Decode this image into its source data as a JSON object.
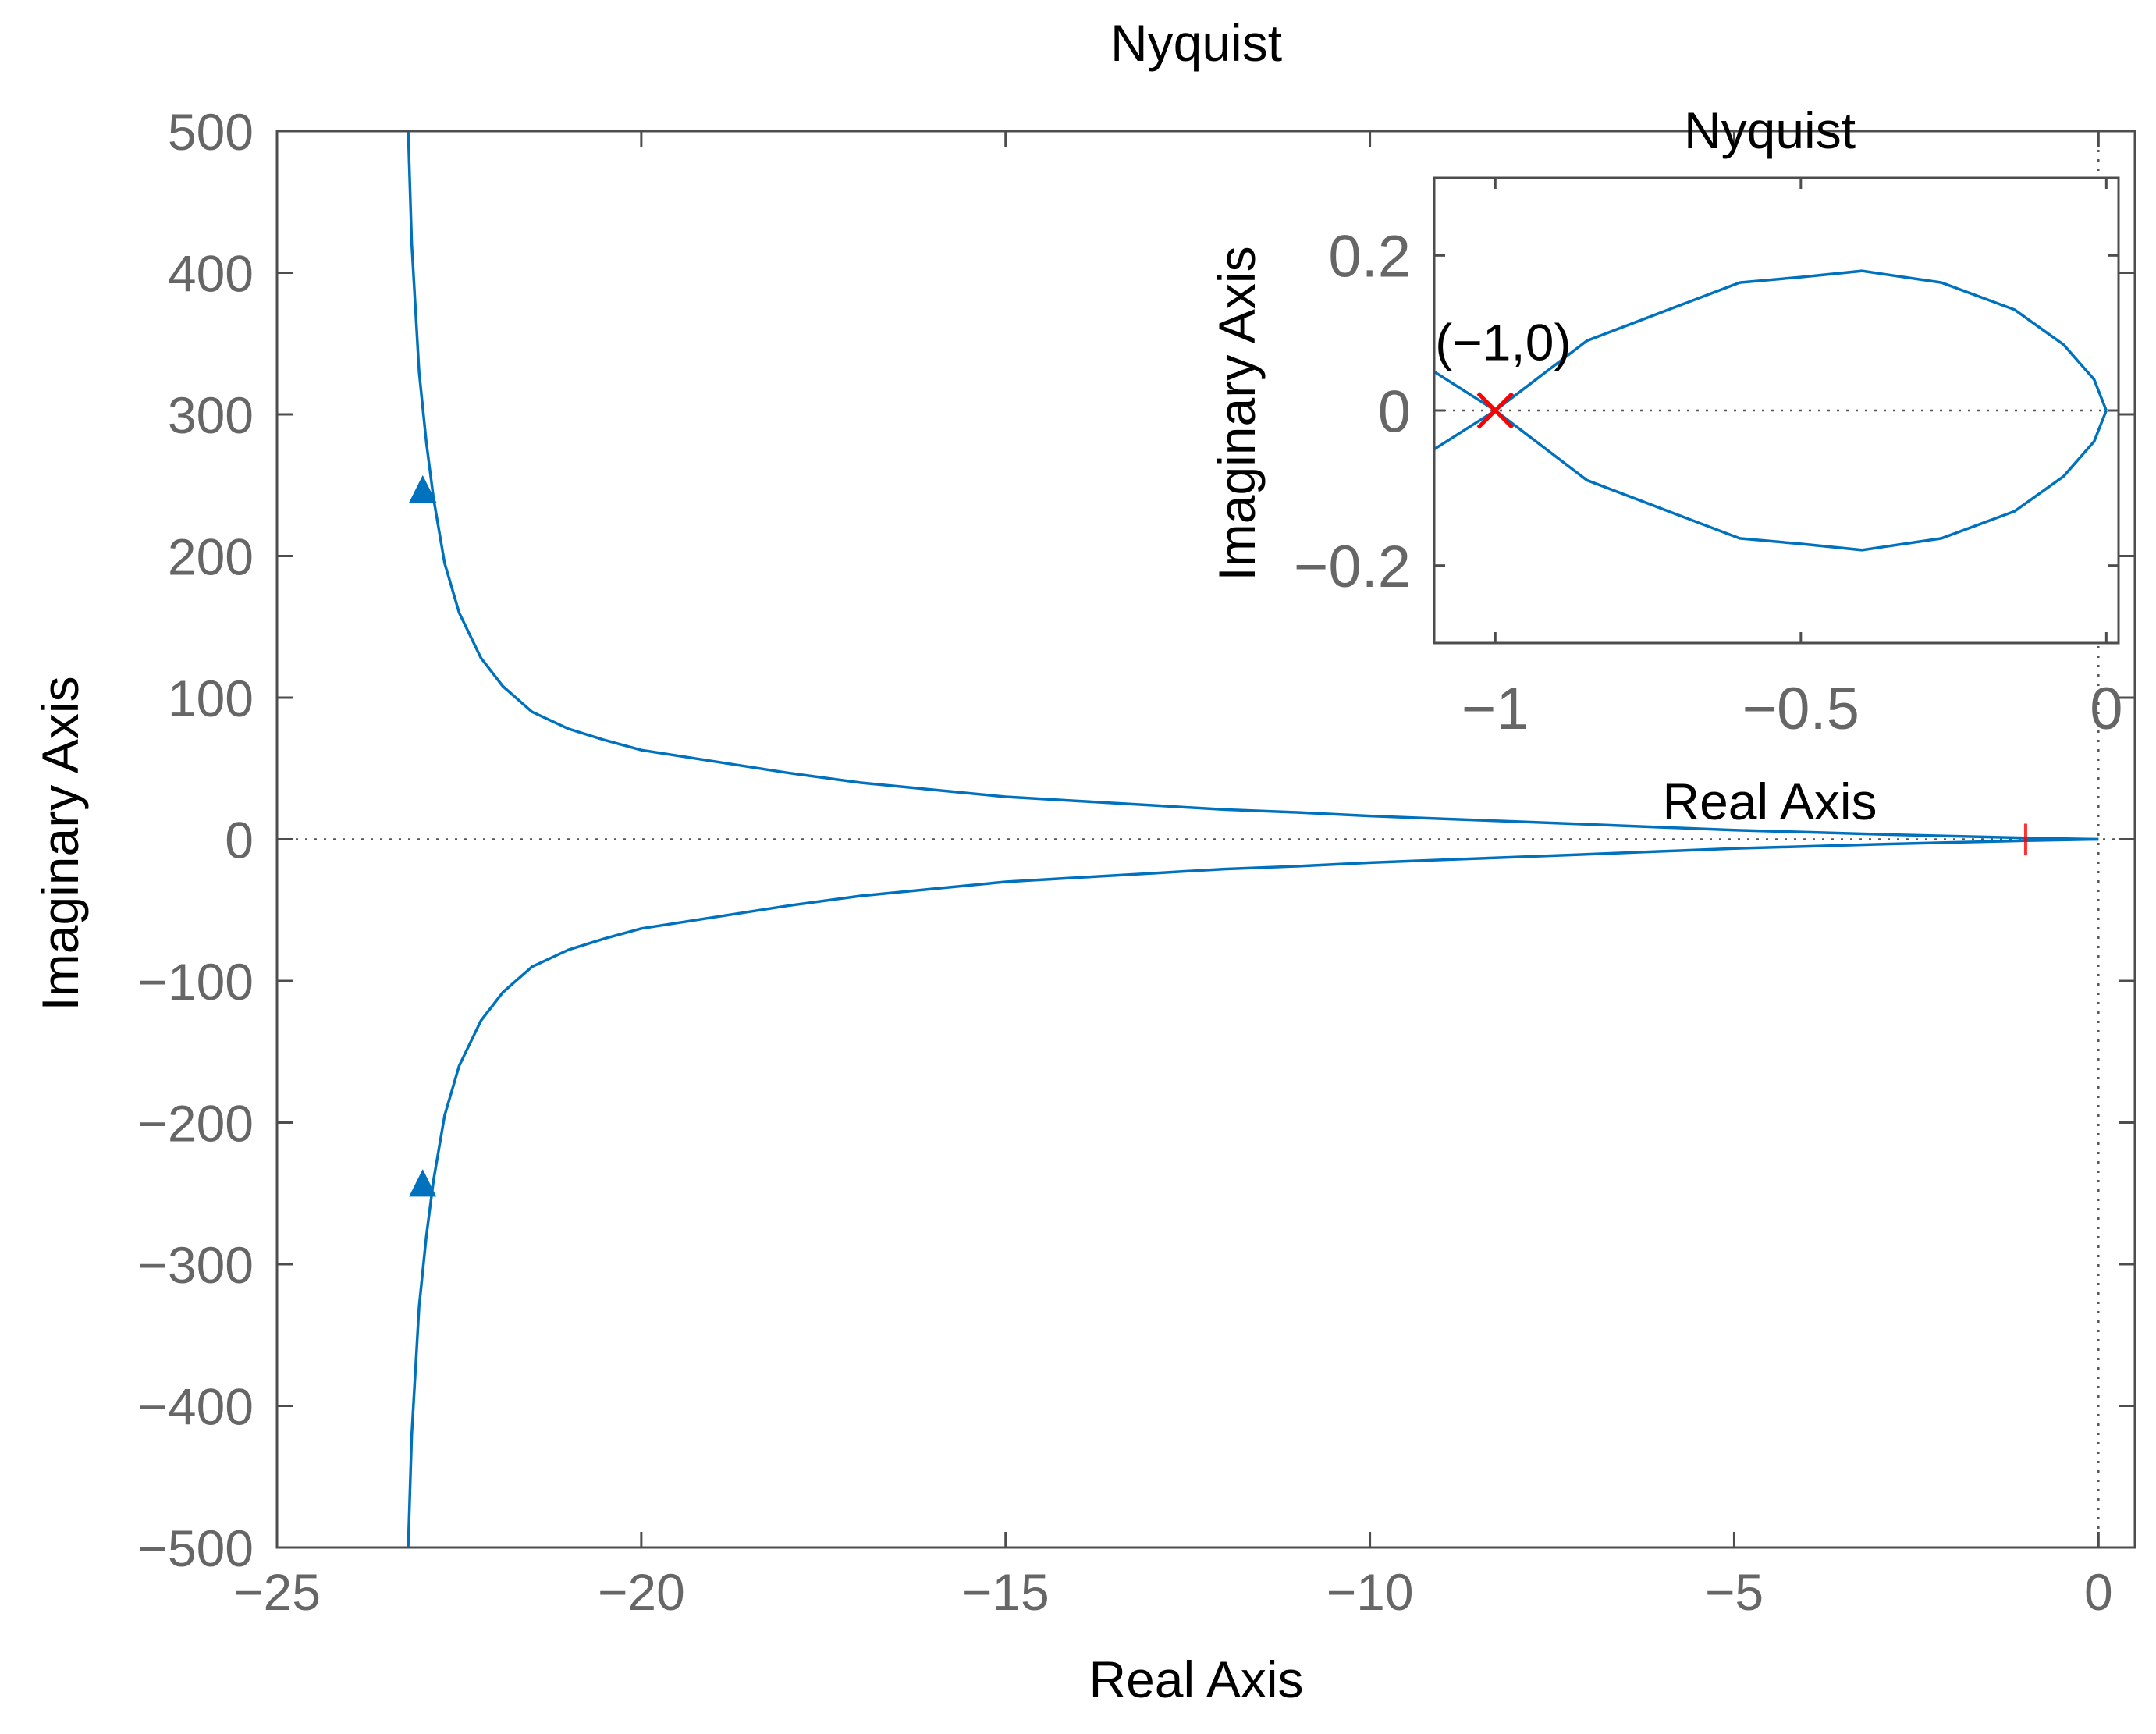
{
  "chart_data": [
    {
      "type": "line",
      "title": "Nyquist",
      "xlabel": "Real Axis",
      "ylabel": "Imaginary Axis",
      "xlim": [
        -25,
        0.5
      ],
      "ylim": [
        -500,
        500
      ],
      "xticks": [
        -25,
        -20,
        -15,
        -10,
        -5,
        0
      ],
      "xtick_labels": [
        "−25",
        "−20",
        "−15",
        "−10",
        "−5",
        "0"
      ],
      "yticks": [
        500,
        400,
        300,
        200,
        100,
        0,
        -100,
        -200,
        -300,
        -400,
        -500
      ],
      "ytick_labels": [
        "500",
        "400",
        "300",
        "200",
        "100",
        "0",
        "−100",
        "−200",
        "−300",
        "−400",
        "−500"
      ],
      "grid": false,
      "series": [
        {
          "color": "#0072BD",
          "x": [
            -23.2,
            -23.15,
            -23.05,
            -22.95,
            -22.85,
            -22.7,
            -22.5,
            -22.2,
            -21.9,
            -21.5,
            -21,
            -20.5,
            -20,
            -19,
            -18,
            -17,
            -16,
            -15,
            -14,
            -13,
            -12,
            -11,
            -10,
            -9,
            -8,
            -7,
            -6,
            -5,
            -4,
            -3,
            -2,
            -1,
            0
          ],
          "y": [
            500,
            420,
            330,
            280,
            240,
            195,
            160,
            128,
            108,
            90,
            78,
            70,
            63,
            55,
            47,
            40,
            35,
            30,
            27,
            24,
            21,
            19,
            16.5,
            14.5,
            12.5,
            10.5,
            8.5,
            6.5,
            5,
            3.5,
            2.2,
            1,
            0
          ]
        },
        {
          "color": "#0072BD",
          "x": [
            -23.2,
            -23.15,
            -23.05,
            -22.95,
            -22.85,
            -22.7,
            -22.5,
            -22.2,
            -21.9,
            -21.5,
            -21,
            -20.5,
            -20,
            -19,
            -18,
            -17,
            -16,
            -15,
            -14,
            -13,
            -12,
            -11,
            -10,
            -9,
            -8,
            -7,
            -6,
            -5,
            -4,
            -3,
            -2,
            -1,
            0
          ],
          "y": [
            -500,
            -420,
            -330,
            -280,
            -240,
            -195,
            -160,
            -128,
            -108,
            -90,
            -78,
            -70,
            -63,
            -55,
            -47,
            -40,
            -35,
            -30,
            -27,
            -24,
            -21,
            -19,
            -16.5,
            -14.5,
            -12.5,
            -10.5,
            -8.5,
            -6.5,
            -5,
            -3.5,
            -2.2,
            -1,
            0
          ]
        }
      ],
      "arrows": [
        {
          "x": -23.0,
          "y": 245,
          "direction": "up"
        },
        {
          "x": -23.0,
          "y": -245,
          "direction": "up"
        }
      ],
      "zero_lines": {
        "x": 0,
        "y": 0,
        "style": "dotted"
      },
      "critical_marker": {
        "x": -1,
        "y": 0,
        "color": "#FF0000"
      }
    },
    {
      "type": "line",
      "title": "Nyquist",
      "xlabel": "Real Axis",
      "ylabel": "Imaginary Axis",
      "xlim": [
        -1.1,
        0.02
      ],
      "ylim": [
        -0.3,
        0.3
      ],
      "xticks": [
        -1,
        -0.5,
        0
      ],
      "xtick_labels": [
        "−1",
        "−0.5",
        "0"
      ],
      "yticks": [
        0.2,
        0,
        -0.2
      ],
      "ytick_labels": [
        "0.2",
        "0",
        "−0.2"
      ],
      "grid": false,
      "series": [
        {
          "color": "#0072BD",
          "x": [
            -1.1,
            -1.0,
            -0.85,
            -0.6,
            -0.5,
            -0.4,
            -0.27,
            -0.15,
            -0.07,
            -0.02,
            0
          ],
          "y": [
            0.05,
            0.0,
            0.09,
            0.165,
            0.172,
            0.18,
            0.165,
            0.13,
            0.085,
            0.04,
            0
          ]
        },
        {
          "color": "#0072BD",
          "x": [
            -1.1,
            -1.0,
            -0.85,
            -0.6,
            -0.5,
            -0.4,
            -0.27,
            -0.15,
            -0.07,
            -0.02,
            0
          ],
          "y": [
            -0.05,
            0.0,
            -0.09,
            -0.165,
            -0.172,
            -0.18,
            -0.165,
            -0.13,
            -0.085,
            -0.04,
            0
          ]
        }
      ],
      "zero_lines": {
        "y": 0,
        "style": "dotted"
      },
      "annotations": [
        {
          "text": "(−1,0)",
          "x": -1.0,
          "y": 0.085
        }
      ],
      "critical_marker": {
        "x": -1,
        "y": 0,
        "color": "#FF0000"
      }
    }
  ]
}
